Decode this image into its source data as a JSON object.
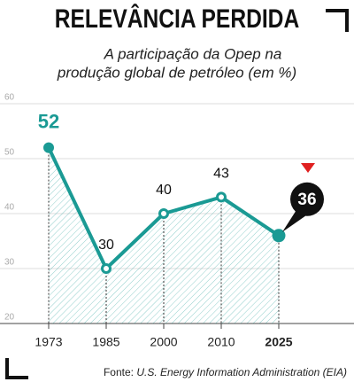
{
  "chart_data": {
    "type": "line",
    "title": "RELEVÂNCIA PERDIDA",
    "subtitle": [
      "A participação da Opep na",
      "produção global de petróleo (em %)"
    ],
    "categories": [
      "1973",
      "1985",
      "2000",
      "2010",
      "2025"
    ],
    "values": [
      52,
      30,
      40,
      43,
      36
    ],
    "color": "#1a9a94",
    "ylim": [
      20,
      60
    ],
    "yticks": [
      20,
      30,
      40,
      50,
      60
    ],
    "grid": true,
    "source_label": "Fonte:",
    "source": "U.S. Energy Information Administration (EIA)"
  }
}
